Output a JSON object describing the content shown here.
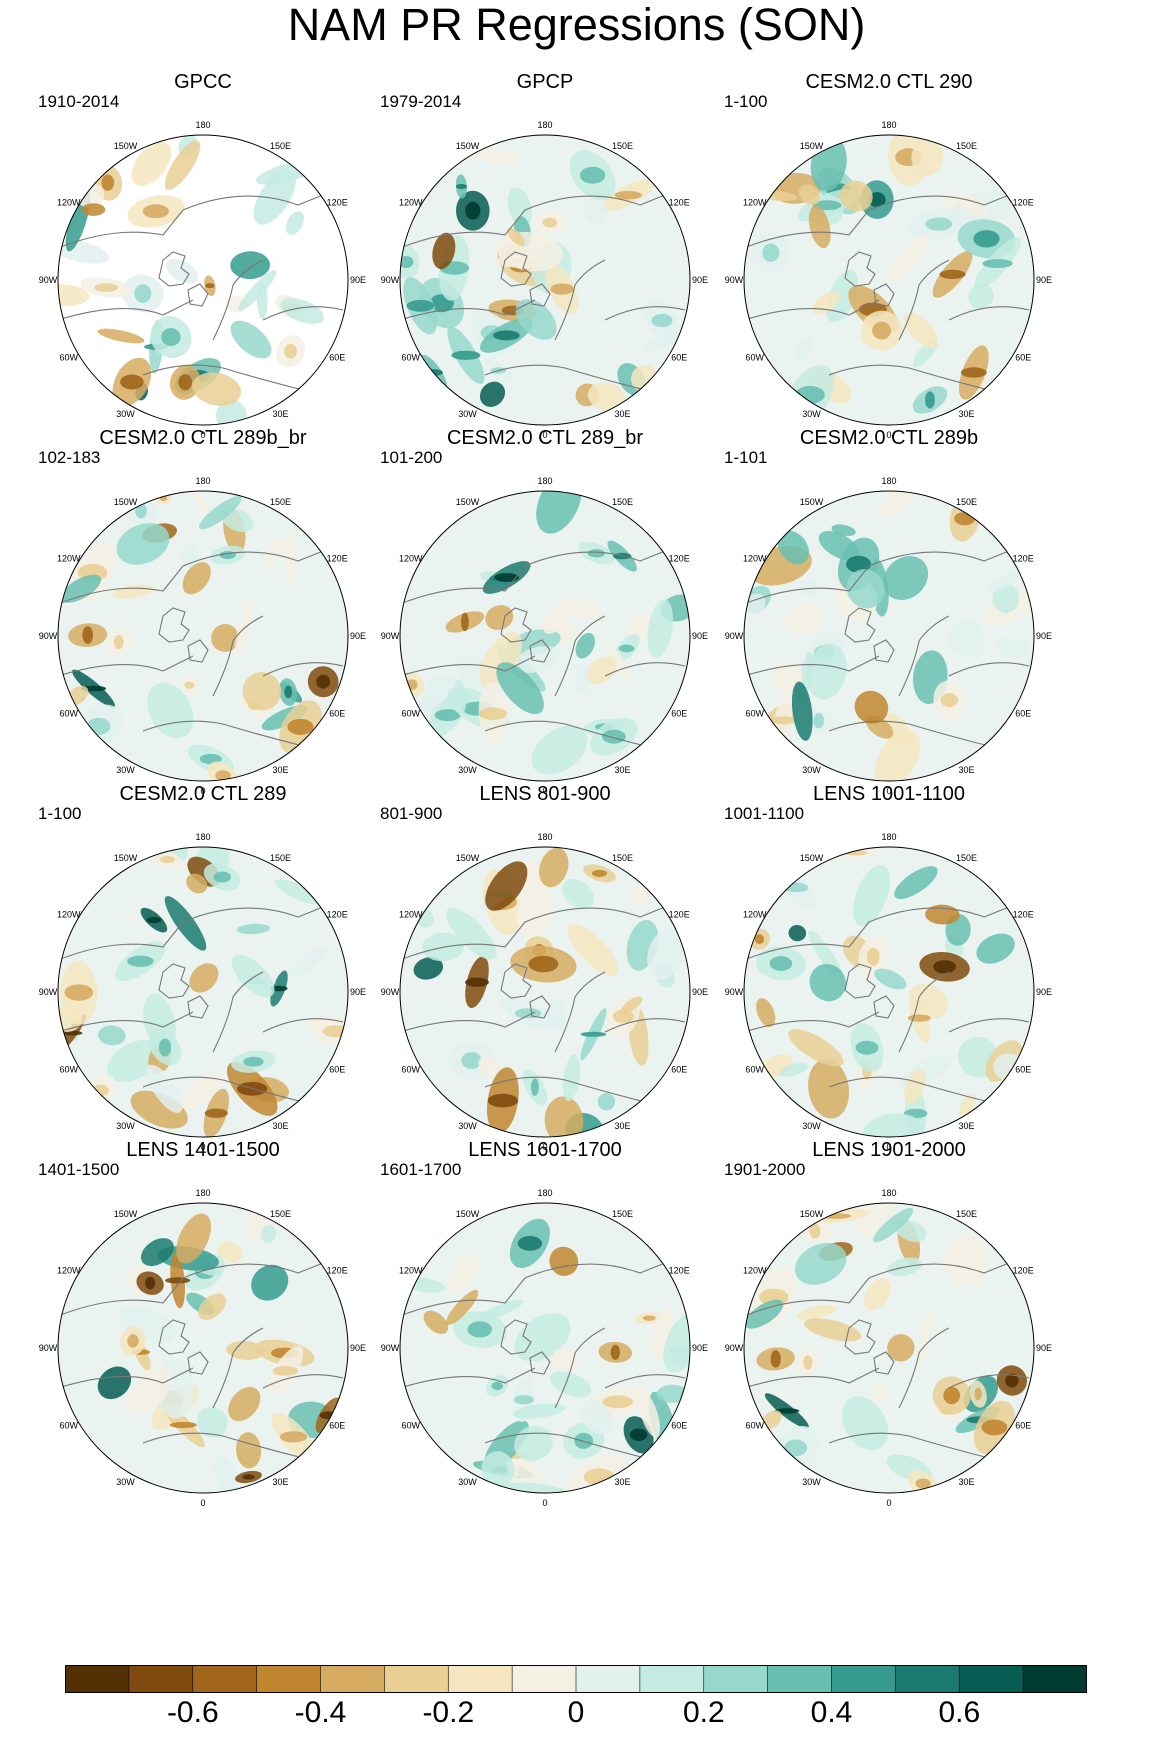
{
  "title": "NAM PR Regressions (SON)",
  "longitude_labels": [
    "180",
    "150E",
    "120E",
    "90E",
    "60E",
    "30E",
    "0",
    "30W",
    "60W",
    "90W",
    "120W",
    "150W"
  ],
  "panels": [
    {
      "title": "GPCC",
      "period": "1910-2014"
    },
    {
      "title": "GPCP",
      "period": "1979-2014"
    },
    {
      "title": "CESM2.0 CTL 290",
      "period": "1-100"
    },
    {
      "title": "CESM2.0 CTL 289b_br",
      "period": "102-183"
    },
    {
      "title": "CESM2.0 CTL 289_br",
      "period": "101-200"
    },
    {
      "title": "CESM2.0 CTL 289b",
      "period": "1-101"
    },
    {
      "title": "CESM2.0 CTL 289",
      "period": "1-100"
    },
    {
      "title": "LENS 801-900",
      "period": "801-900"
    },
    {
      "title": "LENS 1001-1100",
      "period": "1001-1100"
    },
    {
      "title": "LENS 1401-1500",
      "period": "1401-1500"
    },
    {
      "title": "LENS 1601-1700",
      "period": "1601-1700"
    },
    {
      "title": "LENS 1901-2000",
      "period": "1901-2000"
    }
  ],
  "colorbar": {
    "colors": [
      "#543005",
      "#7f4a0d",
      "#a0651b",
      "#c0862f",
      "#d6ab62",
      "#e9cf94",
      "#f5e6c0",
      "#f5f0e4",
      "#e2f0ee",
      "#c4ebe2",
      "#97d8cc",
      "#68bfb0",
      "#359b8e",
      "#1b7a6f",
      "#075d52",
      "#003c30"
    ],
    "tick_labels": [
      "-0.6",
      "-0.4",
      "-0.2",
      "0",
      "0.2",
      "0.4",
      "0.6"
    ]
  },
  "colors": {
    "land_outline": "#777777",
    "map_border": "#000000"
  }
}
